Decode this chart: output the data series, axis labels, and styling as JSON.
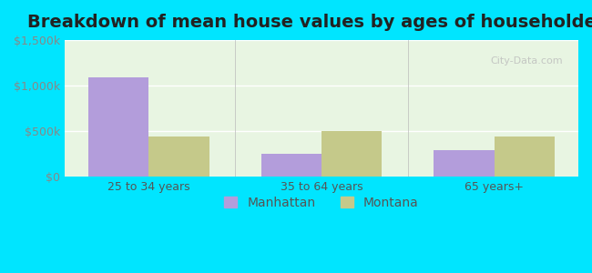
{
  "title": "Breakdown of mean house values by ages of householders",
  "categories": [
    "25 to 34 years",
    "35 to 64 years",
    "65 years+"
  ],
  "manhattan_values": [
    1090000,
    250000,
    290000
  ],
  "montana_values": [
    440000,
    500000,
    440000
  ],
  "manhattan_color": "#b39ddb",
  "montana_color": "#c5c98a",
  "ylim": [
    0,
    1500000
  ],
  "yticks": [
    0,
    500000,
    1000000,
    1500000
  ],
  "ytick_labels": [
    "$0",
    "$500k",
    "$1,000k",
    "$1,500k"
  ],
  "background_outer": "#00e5ff",
  "background_inner": "#e8f5e2",
  "legend_labels": [
    "Manhattan",
    "Montana"
  ],
  "watermark": "City-Data.com",
  "bar_width": 0.35,
  "title_fontsize": 14,
  "axis_label_fontsize": 10,
  "legend_fontsize": 10
}
